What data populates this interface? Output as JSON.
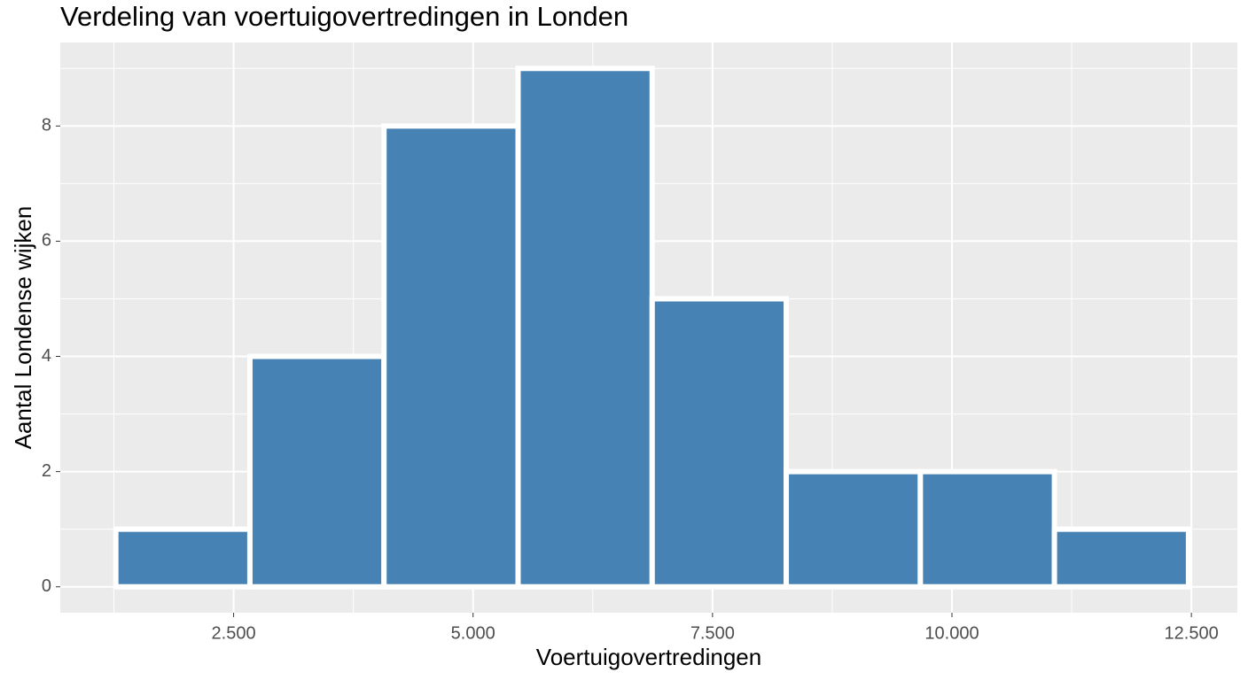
{
  "chart_data": {
    "type": "histogram",
    "title": "Verdeling van voertuigovertredingen in Londen",
    "x_label": "Voertuigovertredingen",
    "y_label": "Aantal Londense wijken",
    "bins": [
      1270,
      2670,
      4070,
      5470,
      6870,
      8270,
      9670,
      11070,
      12470
    ],
    "values": [
      1,
      4,
      8,
      9,
      5,
      2,
      2,
      1
    ],
    "color": "#4682b4",
    "xlim": [
      690,
      12980
    ],
    "ylim": [
      -0.45,
      9.45
    ],
    "xticks": [
      {
        "value": 2500,
        "label": "2.500"
      },
      {
        "value": 5000,
        "label": "5.000"
      },
      {
        "value": 7500,
        "label": "7.500"
      },
      {
        "value": 10000,
        "label": "10.000"
      },
      {
        "value": 12500,
        "label": "12.500"
      }
    ],
    "yticks": [
      0,
      2,
      4,
      6,
      8
    ],
    "grid": true
  }
}
